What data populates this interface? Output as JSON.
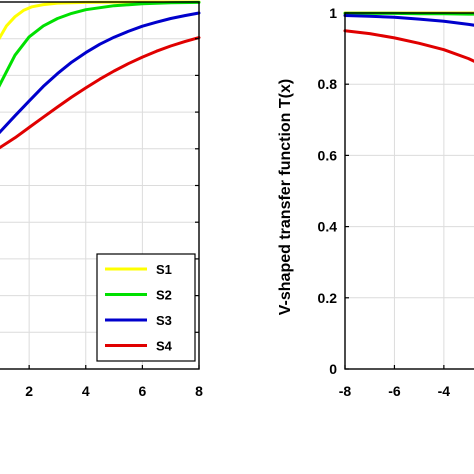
{
  "chart_data": [
    {
      "type": "line",
      "title": "",
      "xlabel": "",
      "ylabel": "",
      "xlim": [
        0.9,
        8
      ],
      "ylim": [
        0,
        1
      ],
      "x_ticks": [
        2,
        4,
        6,
        8
      ],
      "grid": true,
      "legend": "bottom-right",
      "series": [
        {
          "name": "S1",
          "color": "#ffff00",
          "x": [
            0.9,
            1.2,
            1.5,
            1.8,
            2.1,
            2.5,
            3.0,
            4.0,
            6.0,
            8.0
          ],
          "y": [
            0.895,
            0.935,
            0.96,
            0.977,
            0.987,
            0.993,
            0.997,
            0.999,
            1.0,
            1.0
          ]
        },
        {
          "name": "S2",
          "color": "#00e000",
          "x": [
            0.9,
            1.5,
            2.0,
            2.5,
            3.0,
            3.5,
            4.0,
            5.0,
            6.0,
            7.0,
            8.0
          ],
          "y": [
            0.765,
            0.855,
            0.905,
            0.935,
            0.955,
            0.969,
            0.979,
            0.99,
            0.995,
            0.998,
            0.999
          ]
        },
        {
          "name": "S3",
          "color": "#0000cc",
          "x": [
            0.9,
            1.5,
            2.0,
            2.5,
            3.0,
            3.5,
            4.0,
            4.5,
            5.0,
            5.5,
            6.0,
            6.5,
            7.0,
            7.5,
            8.0
          ],
          "y": [
            0.64,
            0.69,
            0.73,
            0.77,
            0.805,
            0.836,
            0.862,
            0.885,
            0.904,
            0.92,
            0.934,
            0.945,
            0.955,
            0.963,
            0.97
          ]
        },
        {
          "name": "S4",
          "color": "#e00000",
          "x": [
            0.9,
            1.5,
            2.0,
            2.5,
            3.0,
            3.5,
            4.0,
            4.5,
            5.0,
            5.5,
            6.0,
            6.5,
            7.0,
            7.5,
            8.0
          ],
          "y": [
            0.6,
            0.63,
            0.658,
            0.686,
            0.714,
            0.741,
            0.766,
            0.79,
            0.812,
            0.832,
            0.85,
            0.866,
            0.88,
            0.892,
            0.903
          ]
        }
      ]
    },
    {
      "type": "line",
      "title": "",
      "xlabel": "",
      "ylabel": "V-shaped transfer function T(x)",
      "xlim": [
        -8,
        -2.7
      ],
      "ylim": [
        0,
        1
      ],
      "x_ticks": [
        -8,
        -6,
        -4
      ],
      "y_ticks": [
        0,
        0.2,
        0.4,
        0.6,
        0.8,
        1
      ],
      "y_tick_labels": [
        "0",
        "0.2",
        "0.4",
        "0.6",
        "0.8",
        "1"
      ],
      "grid": true,
      "series": [
        {
          "color": "#e0e000",
          "x": [
            -8,
            -7,
            -6,
            -5,
            -4,
            -3,
            -2.7
          ],
          "y": [
            1.0,
            1.0,
            1.0,
            1.0,
            1.0,
            1.0,
            1.0
          ]
        },
        {
          "color": "#00e000",
          "x": [
            -8,
            -7,
            -6,
            -5,
            -4,
            -3,
            -2.7
          ],
          "y": [
            0.999,
            0.999,
            0.999,
            0.998,
            0.998,
            0.997,
            0.997
          ]
        },
        {
          "color": "#0000cc",
          "x": [
            -8,
            -7,
            -6,
            -5,
            -4,
            -3,
            -2.7
          ],
          "y": [
            0.993,
            0.991,
            0.988,
            0.983,
            0.977,
            0.968,
            0.965
          ]
        },
        {
          "color": "#e00000",
          "x": [
            -8,
            -7,
            -6,
            -5,
            -4,
            -3,
            -2.7
          ],
          "y": [
            0.95,
            0.942,
            0.93,
            0.915,
            0.897,
            0.872,
            0.862
          ]
        }
      ]
    }
  ]
}
